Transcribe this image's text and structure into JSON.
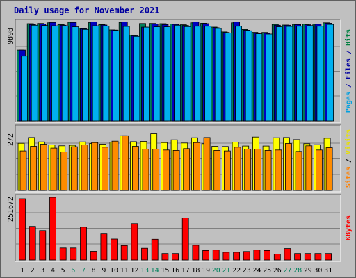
{
  "chart_data": {
    "type": "bar",
    "title": "Daily usage for November 2021",
    "categories": [
      "1",
      "2",
      "3",
      "4",
      "5",
      "6",
      "7",
      "8",
      "9",
      "10",
      "11",
      "12",
      "13",
      "14",
      "15",
      "16",
      "17",
      "18",
      "19",
      "20",
      "21",
      "22",
      "23",
      "24",
      "25",
      "26",
      "27",
      "28",
      "29",
      "30",
      "31"
    ],
    "weekend_days": [
      6,
      7,
      13,
      14,
      20,
      21,
      27,
      28
    ],
    "panels": [
      {
        "name": "top",
        "max_label": "9898",
        "ymax": 9898,
        "right_label": [
          "Pages",
          " / ",
          "Files",
          " / ",
          "Hits"
        ],
        "right_label_colors": [
          "#00a0e0",
          "#0000a0",
          "#0000a0",
          "#0000a0",
          "#008040"
        ],
        "series": [
          {
            "name": "Hits",
            "color": "#00805c",
            "values": [
              7100,
              9760,
              9780,
              9850,
              9660,
              9900,
              9300,
              9860,
              9660,
              9130,
              9880,
              8600,
              9770,
              9780,
              9760,
              9720,
              9650,
              9840,
              9800,
              9410,
              8930,
              9840,
              9170,
              8880,
              8870,
              9680,
              9620,
              9690,
              9710,
              9730,
              9840
            ]
          },
          {
            "name": "Files",
            "color": "#0000c0",
            "values": [
              7100,
              9660,
              9720,
              9880,
              9600,
              9880,
              9240,
              9930,
              9620,
              9120,
              9940,
              8540,
              9400,
              9720,
              9660,
              9680,
              9580,
              9940,
              9760,
              9350,
              8870,
              9940,
              9100,
              8800,
              8790,
              9600,
              9600,
              9660,
              9650,
              9700,
              9800
            ]
          },
          {
            "name": "Pages",
            "color": "#00b0f0",
            "values": [
              6500,
              9600,
              9580,
              9540,
              9520,
              9440,
              9180,
              9540,
              9520,
              9060,
              9480,
              8480,
              9400,
              9440,
              9440,
              9600,
              9460,
              9500,
              9500,
              9280,
              8810,
              9500,
              9040,
              8740,
              8710,
              9440,
              9480,
              9500,
              9560,
              9500,
              9680
            ]
          }
        ]
      },
      {
        "name": "middle",
        "max_label": "272",
        "ymax": 272,
        "right_label": [
          "Sites",
          " / ",
          "Visits"
        ],
        "right_label_colors": [
          "#ff8000",
          "#000000",
          "#e8e000"
        ],
        "series": [
          {
            "name": "Visits",
            "color": "#ffff00",
            "values": [
              205,
              230,
              211,
              198,
              194,
              196,
              211,
              204,
              201,
              210,
              238,
              212,
              213,
              246,
              208,
              220,
              206,
              229,
              203,
              192,
              191,
              210,
              193,
              232,
              193,
              229,
              230,
              221,
              203,
              199,
              227
            ]
          },
          {
            "name": "Sites",
            "color": "#ff8c00",
            "values": [
              172,
              192,
              201,
              184,
              168,
              190,
              198,
              208,
              188,
              214,
              238,
              192,
              180,
              180,
              176,
              174,
              182,
              208,
              230,
              174,
              172,
              188,
              180,
              180,
              174,
              176,
              204,
              170,
              194,
              176,
              186
            ]
          }
        ]
      },
      {
        "name": "bottom",
        "max_label": "251672",
        "ymax": 251672,
        "right_label": [
          "KBytes"
        ],
        "right_label_colors": [
          "#ff0000"
        ],
        "series": [
          {
            "name": "KBytes",
            "color": "#ff0000",
            "values": [
              246000,
              135000,
              118000,
              251672,
              48000,
              48000,
              132000,
              35000,
              107000,
              84000,
              58000,
              146000,
              47000,
              83000,
              26000,
              26000,
              169000,
              59000,
              38000,
              40000,
              31000,
              31000,
              34000,
              40000,
              38000,
              24000,
              46000,
              26000,
              26000,
              26000,
              26000
            ]
          }
        ]
      }
    ]
  }
}
